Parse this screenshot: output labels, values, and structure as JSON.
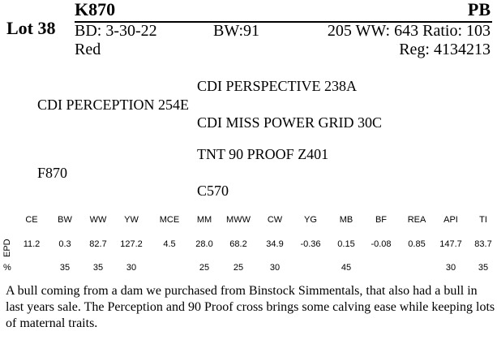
{
  "lot_label": "Lot 38",
  "tag": "K870",
  "breed_code": "PB",
  "birth_date": "BD: 3-30-22",
  "birth_weight": "BW:91",
  "weaning": "205 WW: 643 Ratio: 103",
  "color": "Red",
  "registration": "Reg: 4134213",
  "pedigree": {
    "sire": "CDI PERCEPTION 254E",
    "sire_sire": "CDI PERSPECTIVE 238A",
    "sire_dam": "CDI MISS POWER GRID 30C",
    "dam": "F870",
    "dam_sire": "TNT 90 PROOF Z401",
    "dam_dam": "C570"
  },
  "epd": {
    "row_label": "EPD",
    "pct_label": "%",
    "headers": [
      "CE",
      "BW",
      "WW",
      "YW",
      "MCE",
      "MM",
      "MWW",
      "CW",
      "YG",
      "MB",
      "BF",
      "REA",
      "API",
      "TI"
    ],
    "values": [
      "11.2",
      "0.3",
      "82.7",
      "127.2",
      "4.5",
      "28.0",
      "68.2",
      "34.9",
      "-0.36",
      "0.15",
      "-0.08",
      "0.85",
      "147.7",
      "83.7"
    ],
    "percentiles": [
      "",
      "35",
      "35",
      "30",
      "",
      "25",
      "25",
      "30",
      "",
      "45",
      "",
      "",
      "30",
      "35"
    ]
  },
  "description": "A bull coming from a dam we purchased from Binstock Simmentals, that also had a bull in last years sale.  The Perception and 90 Proof cross brings some calving ease while keeping lots of maternal traits."
}
